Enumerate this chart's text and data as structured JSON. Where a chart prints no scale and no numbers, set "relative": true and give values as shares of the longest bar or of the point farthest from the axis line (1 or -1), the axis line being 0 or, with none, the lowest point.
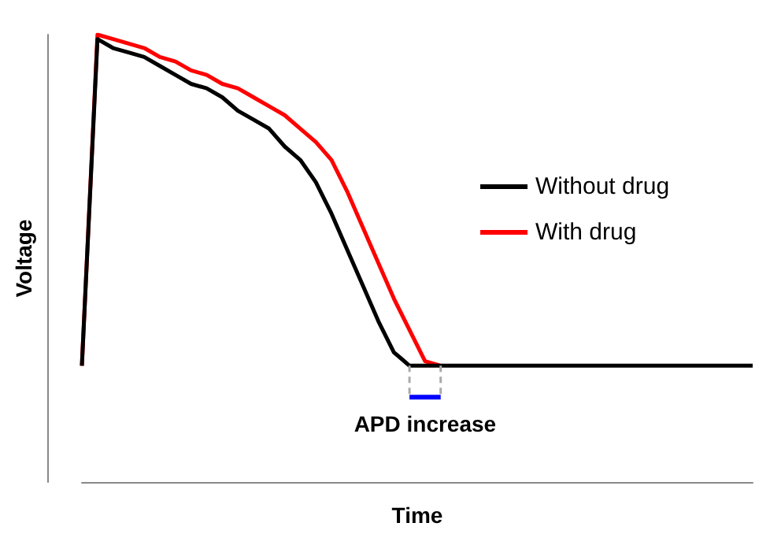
{
  "chart_data": {
    "type": "line",
    "relative": true,
    "xlabel": "Time",
    "ylabel": "Voltage",
    "annotations": [
      "APD increase"
    ],
    "categories": [
      null,
      null,
      null,
      null,
      null,
      null,
      null,
      null,
      null,
      null,
      null,
      null,
      null,
      null,
      null,
      null,
      null,
      null,
      null,
      null,
      null,
      null,
      null,
      null,
      null,
      null,
      null,
      null,
      null,
      null,
      null,
      null,
      null,
      null,
      null,
      null,
      null,
      null,
      null,
      null,
      null,
      null,
      null,
      null
    ],
    "series": [
      {
        "name": "Without drug",
        "color": "#000000",
        "values": [
          0.26,
          0.99,
          0.97,
          0.96,
          0.95,
          0.93,
          0.91,
          0.89,
          0.88,
          0.86,
          0.83,
          0.81,
          0.79,
          0.75,
          0.72,
          0.67,
          0.6,
          0.52,
          0.44,
          0.36,
          0.29,
          0.26,
          0.26,
          0.26,
          0.26,
          0.26,
          0.26,
          0.26,
          0.26,
          0.26,
          0.26,
          0.26,
          0.26,
          0.26,
          0.26,
          0.26,
          0.26,
          0.26,
          0.26,
          0.26,
          0.26,
          0.26,
          0.26,
          0.26
        ]
      },
      {
        "name": "With drug",
        "color": "#ff0000",
        "values": [
          0.26,
          1,
          0.99,
          0.98,
          0.97,
          0.95,
          0.94,
          0.92,
          0.91,
          0.89,
          0.88,
          0.86,
          0.84,
          0.82,
          0.79,
          0.76,
          0.72,
          0.65,
          0.57,
          0.49,
          0.41,
          0.34,
          0.27,
          0.26,
          null,
          null,
          null,
          null,
          null,
          null,
          null,
          null,
          null,
          null,
          null,
          null,
          null,
          null,
          null,
          null,
          null,
          null,
          null,
          null
        ]
      }
    ],
    "legend": "right",
    "grid": false,
    "marker": "none",
    "line_style": "solid"
  }
}
